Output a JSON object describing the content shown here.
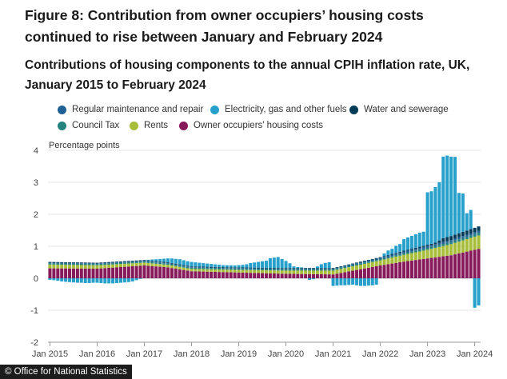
{
  "figure_title": "Figure 8: Contribution from owner occupiers’ housing costs continued to rise between January and February 2024",
  "chart_title": "Contributions of housing components to the annual CPIH inflation rate, UK, January 2015 to February 2024",
  "source_badge": "© Office for National Statistics",
  "chart_data": {
    "type": "bar",
    "stacked": true,
    "start_month": "Jan 2015",
    "months": 110,
    "ylabel": "Percentage points",
    "ylim": [
      -2,
      4
    ],
    "y_ticks": [
      "4",
      "3",
      "2",
      "1",
      "0",
      "-1",
      "-2"
    ],
    "x_ticks": [
      "Jan 2015",
      "Jan 2016",
      "Jan 2017",
      "Jan 2018",
      "Jan 2019",
      "Jan 2020",
      "Jan 2021",
      "Jan 2022",
      "Jan 2023",
      "Jan 2024"
    ],
    "grid": true,
    "legend_position": "top",
    "series": [
      {
        "key": "ooh",
        "name": "Owner occupiers' housing costs",
        "color": "#871a5b",
        "anchors": [
          [
            0,
            0.31
          ],
          [
            12,
            0.3
          ],
          [
            24,
            0.4
          ],
          [
            30,
            0.34
          ],
          [
            36,
            0.22
          ],
          [
            48,
            0.18
          ],
          [
            60,
            0.14
          ],
          [
            66,
            0.13
          ],
          [
            72,
            0.12
          ],
          [
            84,
            0.4
          ],
          [
            90,
            0.52
          ],
          [
            96,
            0.62
          ],
          [
            102,
            0.72
          ],
          [
            109,
            0.92
          ]
        ]
      },
      {
        "key": "rents",
        "name": "Rents",
        "color": "#a8bd3a",
        "anchors": [
          [
            0,
            0.12
          ],
          [
            24,
            0.09
          ],
          [
            36,
            0.07
          ],
          [
            48,
            0.08
          ],
          [
            60,
            0.1
          ],
          [
            72,
            0.12
          ],
          [
            84,
            0.16
          ],
          [
            96,
            0.27
          ],
          [
            103,
            0.36
          ],
          [
            109,
            0.42
          ]
        ]
      },
      {
        "key": "council",
        "name": "Council Tax",
        "color": "#22837f",
        "anchors": [
          [
            0,
            0.04
          ],
          [
            84,
            0.04
          ],
          [
            96,
            0.06
          ],
          [
            109,
            0.08
          ]
        ]
      },
      {
        "key": "maintenance",
        "name": "Regular maintenance and repair",
        "color": "#206095",
        "anchors": [
          [
            0,
            0.02
          ],
          [
            72,
            0.02
          ],
          [
            84,
            0.04
          ],
          [
            96,
            0.06
          ],
          [
            109,
            0.06
          ]
        ]
      },
      {
        "key": "water",
        "name": "Water and sewerage",
        "color": "#003c57",
        "anchors": [
          [
            0,
            0.02
          ],
          [
            84,
            0.02
          ],
          [
            98,
            0.04
          ],
          [
            100,
            0.12
          ],
          [
            109,
            0.14
          ]
        ]
      },
      {
        "key": "energy",
        "name": "Electricity, gas and other fuels",
        "color": "#27a0cc",
        "values": [
          -0.05,
          -0.06,
          -0.08,
          -0.1,
          -0.11,
          -0.12,
          -0.13,
          -0.14,
          -0.14,
          -0.15,
          -0.15,
          -0.14,
          -0.14,
          -0.15,
          -0.16,
          -0.16,
          -0.16,
          -0.15,
          -0.14,
          -0.13,
          -0.12,
          -0.1,
          -0.06,
          -0.02,
          0.0,
          0.02,
          0.04,
          0.06,
          0.08,
          0.1,
          0.12,
          0.14,
          0.15,
          0.16,
          0.15,
          0.14,
          0.14,
          0.13,
          0.12,
          0.11,
          0.1,
          0.09,
          0.08,
          0.07,
          0.06,
          0.06,
          0.06,
          0.06,
          0.07,
          0.08,
          0.1,
          0.14,
          0.16,
          0.18,
          0.2,
          0.22,
          0.3,
          0.32,
          0.34,
          0.28,
          0.22,
          0.15,
          0.05,
          0.03,
          0.02,
          0.0,
          -0.05,
          -0.03,
          0.05,
          0.12,
          0.16,
          0.18,
          -0.24,
          -0.23,
          -0.22,
          -0.22,
          -0.21,
          -0.2,
          -0.22,
          -0.24,
          -0.24,
          -0.23,
          -0.22,
          -0.2,
          0.0,
          0.08,
          0.14,
          0.16,
          0.22,
          0.24,
          0.36,
          0.38,
          0.4,
          0.42,
          0.44,
          0.44,
          1.64,
          1.64,
          1.74,
          1.82,
          2.55,
          2.55,
          2.48,
          2.43,
          1.26,
          1.2,
          0.54,
          0.6,
          -0.92,
          -0.85
        ]
      },
      {
        "key": "energy_early",
        "name": "",
        "color": "#27a0cc",
        "legend": false,
        "values": []
      }
    ]
  }
}
